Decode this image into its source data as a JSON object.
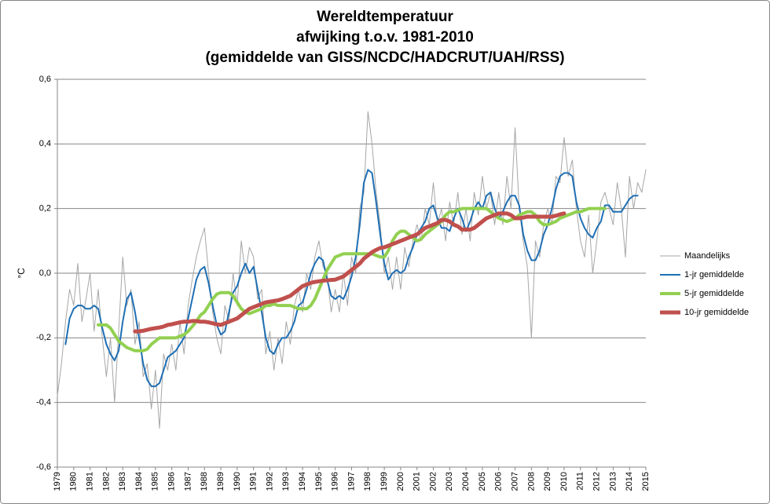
{
  "chart_data": {
    "type": "line",
    "title": [
      "Wereldtemperatuur",
      "afwijking t.o.v. 1981-2010",
      "(gemiddelde van GISS/NCDC/HADCRUT/UAH/RSS)"
    ],
    "ylabel": "°C",
    "xlim": [
      1979,
      2015
    ],
    "xticks": [
      1979,
      1980,
      1981,
      1982,
      1983,
      1984,
      1985,
      1986,
      1987,
      1988,
      1989,
      1990,
      1991,
      1992,
      1993,
      1994,
      1995,
      1996,
      1997,
      1998,
      1999,
      2000,
      2001,
      2002,
      2003,
      2004,
      2005,
      2006,
      2007,
      2008,
      2009,
      2010,
      2011,
      2012,
      2013,
      2014,
      2015
    ],
    "ylim": [
      -0.6,
      0.6
    ],
    "yticks": [
      {
        "value": -0.6,
        "label": "-0,6"
      },
      {
        "value": -0.4,
        "label": "-0,4"
      },
      {
        "value": -0.2,
        "label": "-0,2"
      },
      {
        "value": 0,
        "label": "0,0"
      },
      {
        "value": 0.2,
        "label": "0,2"
      },
      {
        "value": 0.4,
        "label": "0,4"
      },
      {
        "value": 0.6,
        "label": "0,6"
      }
    ],
    "grid": true,
    "legend": "right",
    "x": [
      1979,
      1979.25,
      1979.5,
      1979.75,
      1980,
      1980.25,
      1980.5,
      1980.75,
      1981,
      1981.25,
      1981.5,
      1981.75,
      1982,
      1982.25,
      1982.5,
      1982.75,
      1983,
      1983.25,
      1983.5,
      1983.75,
      1984,
      1984.25,
      1984.5,
      1984.75,
      1985,
      1985.25,
      1985.5,
      1985.75,
      1986,
      1986.25,
      1986.5,
      1986.75,
      1987,
      1987.25,
      1987.5,
      1987.75,
      1988,
      1988.25,
      1988.5,
      1988.75,
      1989,
      1989.25,
      1989.5,
      1989.75,
      1990,
      1990.25,
      1990.5,
      1990.75,
      1991,
      1991.25,
      1991.5,
      1991.75,
      1992,
      1992.25,
      1992.5,
      1992.75,
      1993,
      1993.25,
      1993.5,
      1993.75,
      1994,
      1994.25,
      1994.5,
      1994.75,
      1995,
      1995.25,
      1995.5,
      1995.75,
      1996,
      1996.25,
      1996.5,
      1996.75,
      1997,
      1997.25,
      1997.5,
      1997.75,
      1998,
      1998.25,
      1998.5,
      1998.75,
      1999,
      1999.25,
      1999.5,
      1999.75,
      2000,
      2000.25,
      2000.5,
      2000.75,
      2001,
      2001.25,
      2001.5,
      2001.75,
      2002,
      2002.25,
      2002.5,
      2002.75,
      2003,
      2003.25,
      2003.5,
      2003.75,
      2004,
      2004.25,
      2004.5,
      2004.75,
      2005,
      2005.25,
      2005.5,
      2005.75,
      2006,
      2006.25,
      2006.5,
      2006.75,
      2007,
      2007.25,
      2007.5,
      2007.75,
      2008,
      2008.25,
      2008.5,
      2008.75,
      2009,
      2009.25,
      2009.5,
      2009.75,
      2010,
      2010.25,
      2010.5,
      2010.75,
      2011,
      2011.25,
      2011.5,
      2011.75,
      2012,
      2012.25,
      2012.5,
      2012.75,
      2013,
      2013.25,
      2013.5,
      2013.75,
      2014,
      2014.25,
      2014.5,
      2014.75,
      2015
    ],
    "series": [
      {
        "name": "Maandelijks",
        "color": "#a6a6a6",
        "width": 1,
        "values": [
          -0.38,
          -0.28,
          -0.15,
          -0.05,
          -0.1,
          0.03,
          -0.15,
          -0.08,
          0.0,
          -0.18,
          -0.05,
          -0.2,
          -0.32,
          -0.2,
          -0.4,
          -0.18,
          0.05,
          -0.1,
          -0.05,
          -0.22,
          -0.15,
          -0.32,
          -0.28,
          -0.42,
          -0.3,
          -0.48,
          -0.25,
          -0.3,
          -0.22,
          -0.3,
          -0.15,
          -0.25,
          -0.1,
          -0.02,
          0.05,
          0.1,
          0.14,
          0.0,
          -0.12,
          -0.2,
          -0.25,
          -0.1,
          -0.15,
          0.0,
          -0.1,
          0.1,
          0.0,
          0.08,
          0.05,
          -0.08,
          -0.05,
          -0.25,
          -0.18,
          -0.3,
          -0.2,
          -0.28,
          -0.15,
          -0.22,
          -0.1,
          -0.05,
          -0.12,
          0.0,
          -0.05,
          0.05,
          0.1,
          0.02,
          0.0,
          -0.12,
          -0.05,
          -0.12,
          0.0,
          -0.1,
          0.05,
          0.0,
          0.2,
          0.25,
          0.5,
          0.4,
          0.25,
          0.15,
          0.0,
          0.05,
          -0.05,
          0.05,
          -0.05,
          0.08,
          0.02,
          0.1,
          0.15,
          0.1,
          0.2,
          0.15,
          0.28,
          0.15,
          0.2,
          0.1,
          0.22,
          0.15,
          0.25,
          0.12,
          0.2,
          0.1,
          0.25,
          0.18,
          0.3,
          0.2,
          0.25,
          0.15,
          0.25,
          0.15,
          0.3,
          0.2,
          0.45,
          0.2,
          0.1,
          0.02,
          -0.2,
          0.1,
          0.05,
          0.15,
          0.2,
          0.15,
          0.3,
          0.28,
          0.42,
          0.3,
          0.35,
          0.2,
          0.1,
          0.05,
          0.18,
          0.0,
          0.1,
          0.22,
          0.25,
          0.2,
          0.15,
          0.28,
          0.2,
          0.05,
          0.3,
          0.2,
          0.28,
          0.25,
          0.32
        ]
      },
      {
        "name": "1-jr gemiddelde",
        "color": "#1f6fb5",
        "width": 2,
        "values": [
          null,
          null,
          -0.22,
          -0.14,
          -0.11,
          -0.1,
          -0.1,
          -0.11,
          -0.11,
          -0.1,
          -0.11,
          -0.17,
          -0.22,
          -0.25,
          -0.27,
          -0.24,
          -0.15,
          -0.08,
          -0.06,
          -0.12,
          -0.2,
          -0.28,
          -0.33,
          -0.35,
          -0.35,
          -0.34,
          -0.3,
          -0.26,
          -0.25,
          -0.24,
          -0.22,
          -0.2,
          -0.14,
          -0.08,
          -0.02,
          0.01,
          0.02,
          -0.03,
          -0.1,
          -0.16,
          -0.19,
          -0.18,
          -0.12,
          -0.06,
          -0.04,
          0,
          0.03,
          0,
          0.02,
          -0.05,
          -0.12,
          -0.2,
          -0.24,
          -0.25,
          -0.22,
          -0.2,
          -0.2,
          -0.18,
          -0.15,
          -0.1,
          -0.09,
          -0.05,
          0,
          0.03,
          0.05,
          0.04,
          -0.02,
          -0.07,
          -0.08,
          -0.07,
          -0.08,
          -0.05,
          -0.01,
          0.05,
          0.15,
          0.28,
          0.32,
          0.31,
          0.22,
          0.12,
          0.03,
          -0.02,
          0,
          0.01,
          0,
          0.01,
          0.05,
          0.08,
          0.12,
          0.14,
          0.16,
          0.2,
          0.21,
          0.17,
          0.14,
          0.14,
          0.13,
          0.17,
          0.2,
          0.17,
          0.13,
          0.16,
          0.2,
          0.22,
          0.2,
          0.24,
          0.25,
          0.2,
          0.17,
          0.19,
          0.22,
          0.24,
          0.24,
          0.21,
          0.12,
          0.07,
          0.04,
          0.04,
          0.07,
          0.12,
          0.15,
          0.2,
          0.26,
          0.3,
          0.31,
          0.31,
          0.3,
          0.22,
          0.17,
          0.14,
          0.12,
          0.11,
          0.14,
          0.16,
          0.21,
          0.21,
          0.19,
          0.19,
          0.19,
          0.21,
          0.23,
          0.24,
          0.24,
          null,
          null
        ]
      },
      {
        "name": "5-jr gemiddelde",
        "color": "#92d050",
        "width": 4,
        "values": [
          null,
          null,
          null,
          null,
          null,
          null,
          null,
          null,
          null,
          null,
          -0.16,
          -0.16,
          -0.16,
          -0.17,
          -0.19,
          -0.21,
          -0.22,
          -0.23,
          -0.235,
          -0.24,
          -0.24,
          -0.24,
          -0.235,
          -0.22,
          -0.21,
          -0.2,
          -0.2,
          -0.2,
          -0.2,
          -0.2,
          -0.195,
          -0.19,
          -0.18,
          -0.165,
          -0.15,
          -0.13,
          -0.12,
          -0.1,
          -0.08,
          -0.065,
          -0.06,
          -0.06,
          -0.06,
          -0.07,
          -0.09,
          -0.11,
          -0.12,
          -0.125,
          -0.12,
          -0.115,
          -0.11,
          -0.1,
          -0.1,
          -0.095,
          -0.1,
          -0.1,
          -0.1,
          -0.1,
          -0.105,
          -0.11,
          -0.11,
          -0.11,
          -0.1,
          -0.08,
          -0.05,
          -0.02,
          0.01,
          0.03,
          0.05,
          0.055,
          0.06,
          0.06,
          0.06,
          0.06,
          0.06,
          0.06,
          0.06,
          0.06,
          0.055,
          0.05,
          0.05,
          0.07,
          0.1,
          0.12,
          0.13,
          0.13,
          0.12,
          0.11,
          0.1,
          0.105,
          0.12,
          0.13,
          0.14,
          0.15,
          0.16,
          0.18,
          0.19,
          0.19,
          0.195,
          0.2,
          0.2,
          0.2,
          0.2,
          0.2,
          0.2,
          0.2,
          0.19,
          0.18,
          0.17,
          0.165,
          0.16,
          0.165,
          0.17,
          0.18,
          0.185,
          0.19,
          0.19,
          0.18,
          0.16,
          0.15,
          0.15,
          0.155,
          0.16,
          0.17,
          0.175,
          0.18,
          0.185,
          0.19,
          0.19,
          0.195,
          0.2,
          0.2,
          0.2,
          0.2,
          0.2,
          null,
          null,
          null,
          null,
          null,
          null,
          null,
          null,
          null,
          null
        ]
      },
      {
        "name": "10-jr gemiddelde",
        "color": "#c0504d",
        "width": 5,
        "values": [
          null,
          null,
          null,
          null,
          null,
          null,
          null,
          null,
          null,
          null,
          null,
          null,
          null,
          null,
          null,
          null,
          null,
          null,
          null,
          -0.18,
          -0.18,
          -0.178,
          -0.175,
          -0.172,
          -0.17,
          -0.168,
          -0.165,
          -0.16,
          -0.158,
          -0.155,
          -0.152,
          -0.15,
          -0.15,
          -0.148,
          -0.148,
          -0.15,
          -0.15,
          -0.152,
          -0.155,
          -0.158,
          -0.16,
          -0.155,
          -0.15,
          -0.145,
          -0.14,
          -0.13,
          -0.12,
          -0.11,
          -0.105,
          -0.1,
          -0.095,
          -0.09,
          -0.088,
          -0.086,
          -0.084,
          -0.08,
          -0.075,
          -0.07,
          -0.06,
          -0.05,
          -0.04,
          -0.035,
          -0.03,
          -0.027,
          -0.025,
          -0.023,
          -0.022,
          -0.021,
          -0.02,
          -0.015,
          -0.01,
          0.0,
          0.01,
          0.02,
          0.03,
          0.045,
          0.055,
          0.065,
          0.072,
          0.078,
          0.08,
          0.085,
          0.09,
          0.095,
          0.1,
          0.105,
          0.11,
          0.115,
          0.12,
          0.13,
          0.14,
          0.145,
          0.15,
          0.155,
          0.165,
          0.165,
          0.16,
          0.15,
          0.145,
          0.135,
          0.135,
          0.135,
          0.14,
          0.15,
          0.16,
          0.17,
          0.175,
          0.18,
          0.185,
          0.185,
          0.185,
          0.18,
          0.17,
          0.17,
          0.172,
          0.175,
          0.175,
          0.175,
          0.175,
          0.175,
          0.175,
          0.175,
          0.178,
          0.182,
          0.185,
          null,
          null,
          null,
          null,
          null,
          null,
          null,
          null,
          null,
          null,
          null,
          null,
          null,
          null,
          null,
          null,
          null,
          null,
          null,
          null
        ]
      }
    ]
  }
}
